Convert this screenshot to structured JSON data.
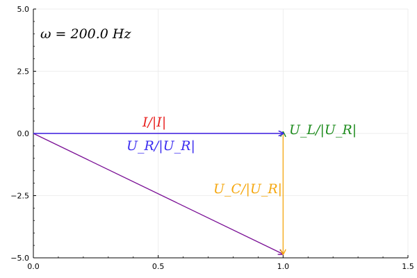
{
  "chart_data": {
    "type": "line",
    "title": "",
    "xlabel": "",
    "ylabel": "",
    "xlim": [
      0,
      1.5
    ],
    "ylim": [
      -5,
      5
    ],
    "x_ticks": [
      0,
      0.5,
      1,
      1.5
    ],
    "x_tick_labels": [
      "0.0",
      "0.5",
      "1.0",
      "1.5"
    ],
    "y_ticks": [
      -5,
      -2.5,
      0,
      2.5,
      5
    ],
    "y_tick_labels": [
      "−5.0",
      "−2.5",
      "0.0",
      "2.5",
      "5.0"
    ],
    "grid": true,
    "legend": "none",
    "annotation": "ω = 200.0 Hz",
    "series": [
      {
        "label": "I/|I|",
        "color": "#e8211f",
        "x": [
          0,
          1
        ],
        "y": [
          0,
          0
        ],
        "arrow": true
      },
      {
        "label": "U_R/|U_R|",
        "color": "#3a2cf0",
        "x": [
          0,
          1
        ],
        "y": [
          0,
          0
        ],
        "arrow": true
      },
      {
        "label": "U_L/|U_R|",
        "color": "#1c8b1c",
        "x": [
          1,
          1
        ],
        "y": [
          0,
          0.05
        ],
        "arrow": true
      },
      {
        "label": "U_C/|U_R|",
        "color": "#f5a70f",
        "x": [
          1,
          1
        ],
        "y": [
          0,
          -4.85
        ],
        "arrow": true
      },
      {
        "label": "",
        "color": "#7a0f95",
        "x": [
          0,
          1
        ],
        "y": [
          0,
          -4.85
        ],
        "arrow": true
      }
    ]
  }
}
